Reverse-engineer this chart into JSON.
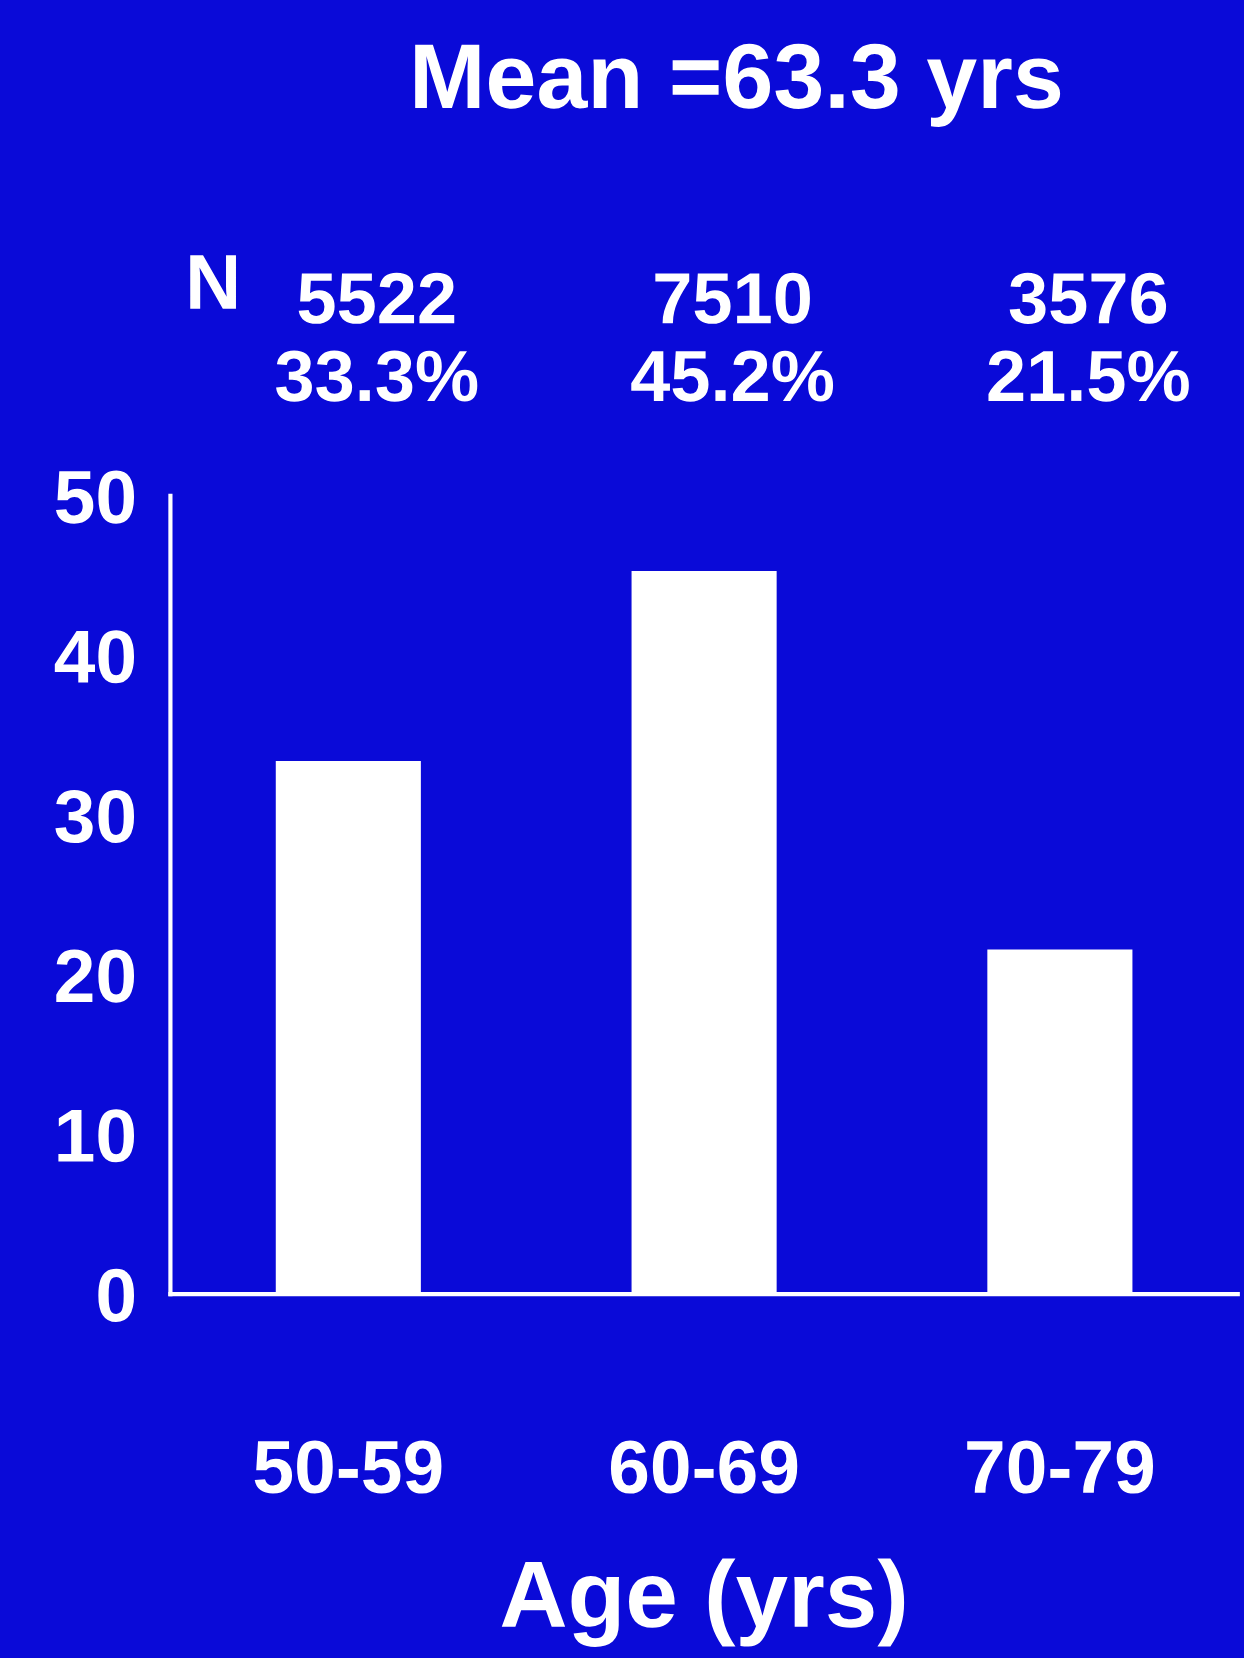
{
  "chart_data": {
    "type": "bar",
    "title": "Mean =63.3 yrs",
    "xlabel": "Age (yrs)",
    "categories": [
      "50-59",
      "60-69",
      "70-79"
    ],
    "values": [
      33.3,
      45.2,
      21.5
    ],
    "color": "#ffffff",
    "value_labels": [
      "5522\n33.3%",
      "7510\n45.2%",
      "3576\n21.5%"
    ],
    "annotations": [
      "N"
    ],
    "ylim": [
      0,
      50
    ],
    "yticks": [
      0,
      10,
      20,
      30,
      40,
      50
    ],
    "grid": false
  }
}
